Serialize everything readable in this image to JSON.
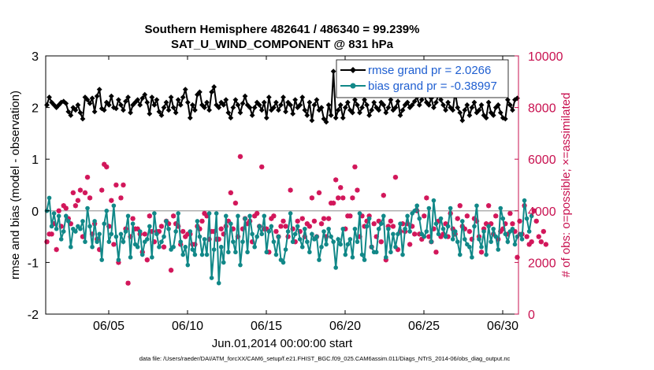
{
  "chart_data": {
    "type": "line",
    "title": "Southern Hemisphere 482641 / 486340 = 99.239%",
    "subtitle": "SAT_U_WIND_COMPONENT @ 831 hPa",
    "xlabel": "Jun.01,2014 00:00:00 start",
    "ylabel": "rmse and bias (model - observation)",
    "y2label": "# of obs: o=possible; ×=assimilated",
    "x_ticks": [
      "06/05",
      "06/10",
      "06/15",
      "06/20",
      "06/25",
      "06/30"
    ],
    "x_tick_days": [
      5,
      10,
      15,
      20,
      25,
      30
    ],
    "xlim": [
      1,
      31
    ],
    "ylim": [
      -2,
      3
    ],
    "y_ticks": [
      "-2",
      "-1",
      "0",
      "1",
      "2",
      "3"
    ],
    "y2lim": [
      0,
      10000
    ],
    "y2_ticks": [
      "0",
      "2000",
      "4000",
      "6000",
      "8000",
      "10000"
    ],
    "legend_position": "top-right",
    "series": [
      {
        "name": "rmse grand pr = 2.0266",
        "color": "#000000",
        "marker": "diamond",
        "values": [
          2.05,
          2.2,
          2.1,
          2.05,
          2.0,
          2.05,
          2.1,
          2.12,
          2.08,
          1.92,
          1.85,
          2.0,
          1.95,
          2.05,
          1.9,
          1.78,
          2.2,
          2.15,
          2.08,
          2.18,
          1.92,
          2.22,
          2.35,
          1.98,
          1.95,
          2.1,
          2.05,
          2.22,
          2.0,
          1.98,
          2.15,
          2.05,
          1.95,
          2.12,
          2.2,
          1.9,
          2.05,
          2.1,
          2.15,
          2.05,
          2.18,
          2.25,
          2.1,
          1.88,
          2.2,
          2.05,
          2.15,
          1.92,
          1.85,
          2.0,
          2.1,
          1.95,
          2.2,
          2.0,
          1.9,
          2.15,
          2.05,
          2.2,
          2.35,
          2.1,
          1.8,
          2.05,
          1.95,
          2.25,
          2.3,
          2.05,
          2.0,
          2.1,
          1.95,
          2.3,
          2.4,
          2.05,
          2.0,
          2.1,
          2.05,
          2.15,
          1.9,
          1.8,
          2.0,
          2.15,
          2.05,
          1.9,
          2.08,
          2.22,
          2.05,
          2.0,
          1.85,
          2.0,
          2.1,
          2.05,
          1.95,
          2.1,
          1.8,
          2.2,
          1.95,
          2.0,
          2.1,
          1.95,
          2.05,
          2.2,
          1.92,
          2.1,
          2.05,
          1.88,
          2.15,
          2.0,
          2.05,
          2.2,
          1.95,
          1.85,
          2.1,
          1.75,
          2.05,
          2.15,
          1.95,
          2.0,
          1.78,
          1.72,
          2.05,
          1.85,
          2.7,
          1.8,
          1.95,
          2.05,
          1.8,
          2.0,
          2.1,
          1.95,
          1.9,
          2.15,
          2.05,
          1.9,
          2.0,
          2.15,
          2.05,
          1.85,
          1.95,
          2.1,
          2.0,
          1.95,
          2.1,
          2.05,
          1.9,
          2.0,
          2.15,
          1.95,
          2.0,
          2.12,
          1.85,
          1.95,
          2.05,
          2.1,
          2.0,
          2.05,
          2.12,
          2.2,
          2.05,
          2.15,
          2.25,
          2.1,
          2.05,
          2.18,
          2.0,
          2.1,
          2.25,
          2.15,
          2.05,
          1.95,
          2.1,
          2.0,
          1.95,
          2.3,
          2.0,
          1.9,
          1.75,
          1.95,
          2.05,
          1.85,
          2.0,
          2.1,
          1.9,
          1.95,
          2.05,
          1.85,
          1.8,
          2.1,
          1.9,
          1.85,
          2.0,
          2.05,
          1.9,
          1.8,
          1.78,
          2.15,
          2.05,
          1.95,
          2.15,
          2.18
        ]
      },
      {
        "name": "bias grand pr = -0.38997",
        "color": "#118888",
        "marker": "circle",
        "values": [
          0.0,
          0.25,
          -0.3,
          -0.05,
          -0.35,
          -0.1,
          -0.55,
          -0.4,
          -0.1,
          -0.2,
          -0.7,
          -0.35,
          -0.4,
          -0.3,
          -0.35,
          -0.2,
          -0.6,
          0.05,
          -0.3,
          -0.7,
          -0.2,
          -0.6,
          -0.45,
          -0.95,
          -0.25,
          0.0,
          -0.6,
          -0.45,
          0.1,
          -0.5,
          -0.95,
          -0.45,
          -0.6,
          -0.4,
          -0.1,
          -0.9,
          -0.25,
          -0.65,
          -0.7,
          -0.4,
          -0.85,
          -0.6,
          -0.55,
          -0.3,
          -0.9,
          -0.05,
          -0.45,
          -0.7,
          -0.6,
          -0.5,
          -0.2,
          -0.35,
          -0.75,
          -0.7,
          -0.4,
          -0.05,
          -0.6,
          -0.85,
          -0.7,
          -1.05,
          -0.4,
          -0.75,
          -0.85,
          -0.2,
          -0.5,
          -0.85,
          -0.55,
          -0.85,
          -0.05,
          -1.3,
          -0.75,
          -0.05,
          -1.4,
          -0.7,
          -1.0,
          -0.1,
          -0.8,
          -0.25,
          -0.6,
          -0.8,
          -0.1,
          -1.05,
          -0.6,
          -0.15,
          -0.8,
          -0.1,
          -0.45,
          -0.7,
          -0.5,
          -0.3,
          -0.45,
          -0.1,
          -0.8,
          -0.4,
          -0.3,
          -0.6,
          -0.85,
          -0.5,
          -0.95,
          -1.0,
          -0.75,
          -0.4,
          -0.05,
          -0.6,
          -0.45,
          -0.3,
          -0.55,
          -0.7,
          -0.35,
          -0.6,
          -0.8,
          -0.45,
          -0.55,
          -0.5,
          -0.95,
          -0.7,
          -0.4,
          -0.65,
          -0.35,
          -0.5,
          -0.6,
          -1.1,
          -0.55,
          -0.65,
          -0.35,
          -0.85,
          -0.65,
          -0.55,
          -0.9,
          -0.35,
          -0.6,
          -0.05,
          -0.85,
          -0.95,
          -0.3,
          -0.15,
          -0.7,
          -0.8,
          -0.8,
          -0.35,
          -0.25,
          -0.1,
          -0.9,
          -0.35,
          -0.8,
          -0.45,
          -0.7,
          -0.45,
          -0.25,
          -0.85,
          -0.35,
          -0.1,
          -0.4,
          -0.05,
          0.0,
          0.1,
          -0.15,
          -0.45,
          -0.5,
          -0.4,
          0.05,
          -0.6,
          0.2,
          -0.25,
          -0.45,
          -0.15,
          -0.35,
          -0.5,
          -0.3,
          0.05,
          -0.55,
          -0.4,
          -0.6,
          -0.85,
          -0.2,
          -0.55,
          -0.65,
          -0.7,
          -0.9,
          -0.3,
          0.1,
          -0.55,
          -0.7,
          -0.4,
          -0.85,
          -0.3,
          -0.6,
          -0.35,
          -0.5,
          -0.75,
          0.05,
          -0.15,
          -0.45,
          -0.6,
          -0.4,
          -0.35,
          -0.65,
          -0.5,
          -0.45,
          -0.55,
          0.2,
          -0.15,
          -0.4,
          -0.1
        ]
      },
      {
        "name": "# of obs assimilated",
        "axis": "right",
        "color": "#d2165a",
        "marker": "asterisk",
        "values": [
          2800,
          3100,
          3100,
          3500,
          2500,
          4000,
          3400,
          4200,
          4100,
          3700,
          3500,
          4700,
          4200,
          4400,
          4800,
          3000,
          4700,
          5300,
          4500,
          3100,
          3500,
          2900,
          2500,
          4800,
          5800,
          5700,
          3400,
          4400,
          2700,
          5000,
          2000,
          4500,
          5000,
          3300,
          1200,
          3000,
          3700,
          3300,
          3300,
          3100,
          2400,
          3100,
          2100,
          3800,
          3200,
          2800,
          3200,
          3200,
          3400,
          2600,
          3600,
          3500,
          1700,
          3800,
          3500,
          3400,
          2700,
          3200,
          3000,
          3100,
          3100,
          2700,
          2700,
          3400,
          3300,
          3600,
          3900,
          3800,
          2900,
          3200,
          3200,
          2900,
          2900,
          3300,
          3100,
          3400,
          3600,
          4700,
          3300,
          4300,
          3000,
          6100,
          3300,
          3700,
          3500,
          3600,
          2800,
          3800,
          3900,
          3400,
          5700,
          3300,
          3300,
          2400,
          3700,
          3800,
          3200,
          3000,
          3400,
          3600,
          3400,
          3000,
          4800,
          3300,
          2800,
          3600,
          3200,
          3700,
          3000,
          3500,
          3400,
          4500,
          3600,
          3000,
          4700,
          3500,
          3700,
          3000,
          3700,
          4300,
          4300,
          5200,
          4500,
          4900,
          4500,
          3300,
          3800,
          3800,
          4500,
          5700,
          4800,
          3000,
          3800,
          3400,
          3600,
          3800,
          2600,
          3500,
          3000,
          3600,
          2800,
          4600,
          2100,
          3400,
          3600,
          3400,
          5300,
          2500,
          3200,
          3500,
          3200,
          3500,
          2700,
          3400,
          3100,
          4000,
          3100,
          2900,
          3800,
          4500,
          3000,
          2800,
          3300,
          2400,
          3600,
          3000,
          3100,
          3500,
          3000,
          3900,
          3300,
          3100,
          3700,
          4200,
          3400,
          3300,
          3800,
          3200,
          2900,
          3700,
          3600,
          3000,
          2400,
          3300,
          3500,
          4200,
          3500,
          3100,
          3800,
          2900,
          3200,
          3300,
          3500,
          3100,
          3900,
          3500,
          3200,
          2200,
          3600,
          3100,
          4200,
          3000,
          2700,
          2800,
          4000,
          3600,
          3000,
          2800,
          3200,
          2700
        ]
      },
      {
        "name": "# of obs possible",
        "axis": "right",
        "color": "#d2165a",
        "marker": "circle-open",
        "values": [
          2800,
          3100,
          3100,
          3500,
          2500,
          4000,
          3400,
          4200,
          4100,
          3700,
          3500,
          4700,
          4200,
          4400,
          4800,
          3000,
          4700,
          5300,
          4500,
          3100,
          3500,
          2900,
          2500,
          4800,
          5800,
          5700,
          3400,
          4400,
          2700,
          5000,
          2000,
          4500,
          5000,
          3300,
          1200,
          3000,
          3700,
          3300,
          3300,
          3100,
          2400,
          3100,
          2100,
          3800,
          3200,
          2800,
          3200,
          3200,
          3400,
          2600,
          3600,
          3500,
          1700,
          3800,
          3500,
          3400,
          2700,
          3200,
          3000,
          3100,
          3100,
          2700,
          2700,
          3400,
          3300,
          3600,
          3900,
          3800,
          2900,
          3200,
          3200,
          2900,
          2900,
          3300,
          3100,
          3400,
          3600,
          4700,
          3300,
          4300,
          3000,
          6100,
          3300,
          3700,
          3500,
          3600,
          2800,
          3800,
          3900,
          3400,
          5700,
          3300,
          3300,
          2400,
          3700,
          3800,
          3200,
          3000,
          3400,
          3600,
          3400,
          3000,
          4800,
          3300,
          2800,
          3600,
          3200,
          3700,
          3000,
          3500,
          3400,
          4500,
          3600,
          3000,
          4700,
          3500,
          3700,
          3000,
          3700,
          4300,
          4300,
          5200,
          4500,
          4900,
          4500,
          3300,
          3800,
          3800,
          4500,
          5700,
          4800,
          3000,
          3800,
          3400,
          3600,
          3800,
          2600,
          3500,
          3000,
          3600,
          2800,
          4600,
          2100,
          3400,
          3600,
          3400,
          5300,
          2500,
          3200,
          3500,
          3200,
          3500,
          2700,
          3400,
          3100,
          4000,
          3100,
          2900,
          3800,
          4500,
          3000,
          2800,
          3300,
          2400,
          3600,
          3000,
          3100,
          3500,
          3000,
          3900,
          3300,
          3100,
          3700,
          4200,
          3400,
          3300,
          3800,
          3200,
          2900,
          3700,
          3600,
          3000,
          2400,
          3300,
          3500,
          4200,
          3500,
          3100,
          3800,
          2900,
          3200,
          3300,
          3500,
          3100,
          3900,
          3500,
          3200,
          2200,
          3600,
          3100,
          4200,
          3000,
          2700,
          2800,
          4000,
          3600,
          3000,
          2800,
          3200,
          2700
        ]
      }
    ],
    "footer": "data file: /Users/raeder/DAI/ATM_forcXX/CAM6_setup/f.e21.FHIST_BGC.f09_025.CAM6assim.011/Diags_NTrS_2014-06/obs_diag_output.nc"
  }
}
